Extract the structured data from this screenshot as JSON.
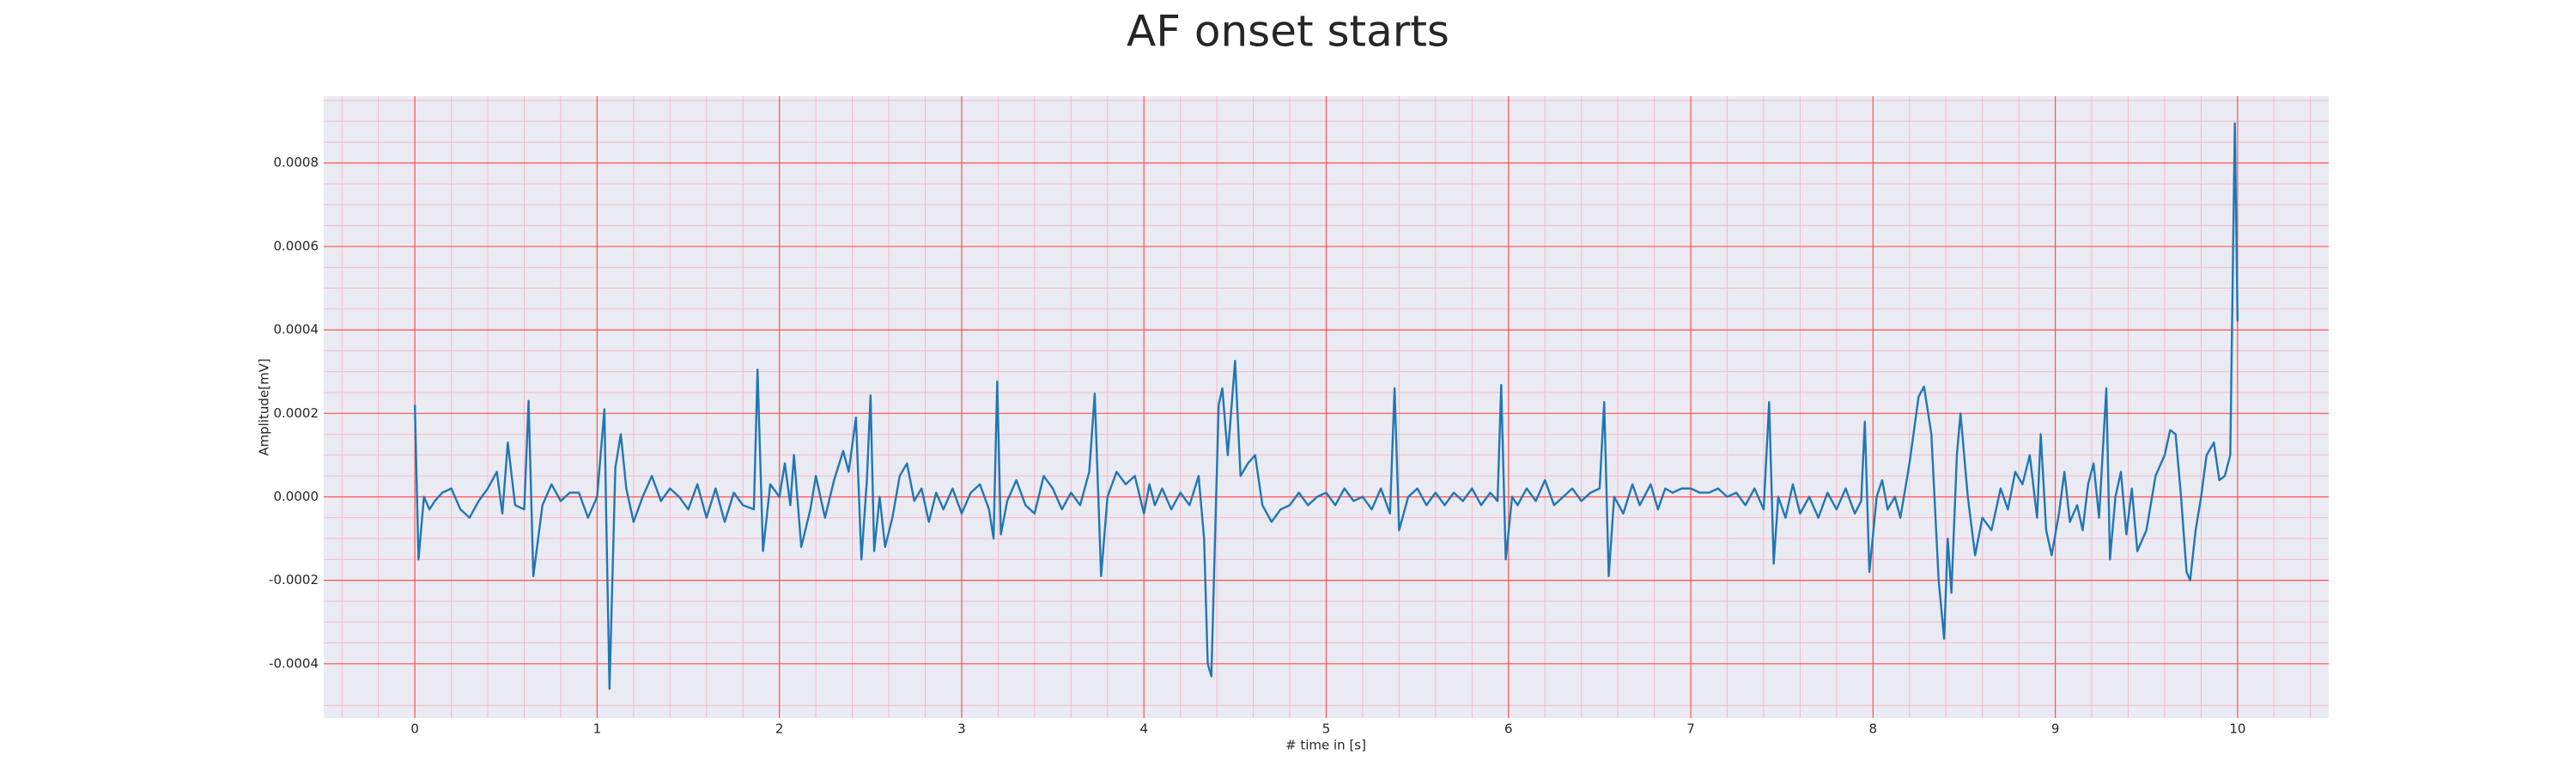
{
  "chart_data": {
    "type": "line",
    "title": "AF onset starts",
    "xlabel": "# time in [s]",
    "ylabel": "Amplitude[mV]",
    "color": "#1f77b4",
    "xlim": [
      -0.5,
      10.5
    ],
    "ylim": [
      -0.00053,
      0.00096
    ],
    "xticks": [
      0,
      1,
      2,
      3,
      4,
      5,
      6,
      7,
      8,
      9,
      10
    ],
    "yticks": [
      -0.0004,
      -0.0002,
      {
        "value": 0,
        "label": "0.0000"
      },
      0.0002,
      0.0004,
      0.0006,
      0.0008
    ],
    "xminorticks": [
      -0.4,
      -0.2,
      0.2,
      0.4,
      0.6,
      0.8,
      1.2,
      1.4,
      1.6,
      1.8,
      2.2,
      2.4,
      2.6,
      2.8,
      3.2,
      3.4,
      3.6,
      3.8,
      4.2,
      4.4,
      4.6,
      4.8,
      5.2,
      5.4,
      5.6,
      5.8,
      6.2,
      6.4,
      6.6,
      6.8,
      7.2,
      7.4,
      7.6,
      7.8,
      8.2,
      8.4,
      8.6,
      8.8,
      9.2,
      9.4,
      9.6,
      9.8,
      10.2,
      10.4
    ],
    "yminorticks": [
      -0.0005,
      -0.00035,
      -0.0003,
      -0.00025,
      -0.00015,
      -0.0001,
      -5e-05,
      5e-05,
      0.0001,
      0.00015,
      0.00025,
      0.0003,
      0.00035,
      0.00045,
      0.0005,
      0.00055,
      0.00065,
      0.0007,
      0.00075,
      0.00085,
      0.0009,
      0.00095
    ],
    "grid": true,
    "major_grid_color": "#ff5050",
    "minor_grid_color": "#f5b8c8",
    "background": "#eaeaf2",
    "x": [
      0,
      0.02,
      0.05,
      0.08,
      0.11,
      0.15,
      0.2,
      0.25,
      0.3,
      0.35,
      0.4,
      0.45,
      0.48,
      0.51,
      0.55,
      0.6,
      0.624,
      0.65,
      0.7,
      0.75,
      0.8,
      0.85,
      0.9,
      0.95,
      1.0,
      1.04,
      1.05,
      1.068,
      1.1,
      1.13,
      1.16,
      1.2,
      1.25,
      1.3,
      1.35,
      1.4,
      1.45,
      1.5,
      1.55,
      1.6,
      1.65,
      1.7,
      1.75,
      1.8,
      1.86,
      1.88,
      1.91,
      1.95,
      2.0,
      2.03,
      2.06,
      2.08,
      2.12,
      2.17,
      2.2,
      2.25,
      2.3,
      2.35,
      2.38,
      2.42,
      2.45,
      2.48,
      2.5,
      2.52,
      2.55,
      2.58,
      2.62,
      2.66,
      2.7,
      2.74,
      2.78,
      2.82,
      2.86,
      2.9,
      2.95,
      3.0,
      3.05,
      3.1,
      3.15,
      3.175,
      3.195,
      3.215,
      3.25,
      3.3,
      3.35,
      3.4,
      3.45,
      3.5,
      3.55,
      3.6,
      3.65,
      3.7,
      3.73,
      3.765,
      3.8,
      3.85,
      3.9,
      3.95,
      4.0,
      4.03,
      4.06,
      4.1,
      4.15,
      4.2,
      4.25,
      4.3,
      4.33,
      4.35,
      4.37,
      4.39,
      4.41,
      4.43,
      4.46,
      4.5,
      4.53,
      4.57,
      4.61,
      4.65,
      4.7,
      4.75,
      4.8,
      4.85,
      4.9,
      4.95,
      5.0,
      5.05,
      5.1,
      5.15,
      5.2,
      5.25,
      5.3,
      5.35,
      5.375,
      5.4,
      5.45,
      5.5,
      5.55,
      5.6,
      5.65,
      5.7,
      5.75,
      5.8,
      5.85,
      5.9,
      5.94,
      5.96,
      5.985,
      6.02,
      6.05,
      6.1,
      6.15,
      6.2,
      6.25,
      6.3,
      6.35,
      6.4,
      6.45,
      6.5,
      6.525,
      6.55,
      6.58,
      6.63,
      6.68,
      6.72,
      6.78,
      6.82,
      6.86,
      6.9,
      6.95,
      7.0,
      7.05,
      7.1,
      7.15,
      7.2,
      7.25,
      7.3,
      7.35,
      7.4,
      7.43,
      7.455,
      7.48,
      7.52,
      7.56,
      7.6,
      7.65,
      7.7,
      7.75,
      7.8,
      7.85,
      7.9,
      7.935,
      7.955,
      7.98,
      8.02,
      8.05,
      8.08,
      8.12,
      8.15,
      8.2,
      8.25,
      8.28,
      8.32,
      8.36,
      8.39,
      8.41,
      8.43,
      8.46,
      8.48,
      8.52,
      8.56,
      8.6,
      8.65,
      8.7,
      8.74,
      8.78,
      8.82,
      8.86,
      8.9,
      8.92,
      8.95,
      8.98,
      9.02,
      9.05,
      9.08,
      9.12,
      9.15,
      9.18,
      9.21,
      9.24,
      9.28,
      9.3,
      9.33,
      9.36,
      9.39,
      9.42,
      9.45,
      9.5,
      9.55,
      9.6,
      9.63,
      9.66,
      9.69,
      9.72,
      9.74,
      9.77,
      9.8,
      9.83,
      9.87,
      9.9,
      9.93,
      9.96,
      9.985,
      10.0
    ],
    "values": [
      0.00022,
      -0.00015,
      0,
      -3e-05,
      -1e-05,
      1e-05,
      2e-05,
      -3e-05,
      -5e-05,
      -1e-05,
      2e-05,
      6e-05,
      -4e-05,
      0.00013,
      -2e-05,
      -3e-05,
      0.00023,
      -0.00019,
      -2e-05,
      3e-05,
      -1e-05,
      1e-05,
      1e-05,
      -5e-05,
      0,
      0.00021,
      -5e-05,
      -0.00046,
      7e-05,
      0.00015,
      2e-05,
      -6e-05,
      0,
      5e-05,
      -1e-05,
      2e-05,
      0,
      -3e-05,
      3e-05,
      -5e-05,
      2e-05,
      -6e-05,
      1e-05,
      -2e-05,
      -3e-05,
      0.000305,
      -0.00013,
      3e-05,
      0,
      8e-05,
      -2e-05,
      0.0001,
      -0.00012,
      -3e-05,
      5e-05,
      -5e-05,
      4e-05,
      0.00011,
      6e-05,
      0.00019,
      -0.00015,
      4e-05,
      0.000243,
      -0.00013,
      0,
      -0.00012,
      -5e-05,
      5e-05,
      8e-05,
      -1e-05,
      2e-05,
      -6e-05,
      1e-05,
      -3e-05,
      2e-05,
      -4e-05,
      1e-05,
      3e-05,
      -3e-05,
      -0.0001,
      0.000276,
      -9e-05,
      -1e-05,
      4e-05,
      -2e-05,
      -4e-05,
      5e-05,
      2e-05,
      -3e-05,
      1e-05,
      -2e-05,
      6e-05,
      0.000247,
      -0.00019,
      0,
      6e-05,
      3e-05,
      5e-05,
      -4e-05,
      3e-05,
      -2e-05,
      2e-05,
      -3e-05,
      1e-05,
      -2e-05,
      5e-05,
      -0.0001,
      -0.0004,
      -0.00043,
      -0.0001,
      0.00022,
      0.00026,
      0.0001,
      0.000326,
      5e-05,
      8e-05,
      0.0001,
      -2e-05,
      -6e-05,
      -3e-05,
      -2e-05,
      1e-05,
      -2e-05,
      0,
      1e-05,
      -2e-05,
      2e-05,
      -1e-05,
      0,
      -3e-05,
      2e-05,
      -4e-05,
      0.00026,
      -8e-05,
      0,
      2e-05,
      -2e-05,
      1e-05,
      -2e-05,
      1e-05,
      -1e-05,
      2e-05,
      -2e-05,
      1e-05,
      -1e-05,
      0.000268,
      -0.00015,
      0,
      -2e-05,
      2e-05,
      -1e-05,
      4e-05,
      -2e-05,
      0,
      2e-05,
      -1e-05,
      1e-05,
      2e-05,
      0.000227,
      -0.00019,
      0,
      -4e-05,
      3e-05,
      -2e-05,
      3e-05,
      -3e-05,
      2e-05,
      1e-05,
      2e-05,
      2e-05,
      1e-05,
      1e-05,
      2e-05,
      0,
      1e-05,
      -2e-05,
      2e-05,
      -3e-05,
      0.000227,
      -0.00016,
      0,
      -5e-05,
      3e-05,
      -4e-05,
      0,
      -5e-05,
      1e-05,
      -3e-05,
      2e-05,
      -4e-05,
      -1e-05,
      0.00018,
      -0.00018,
      0,
      4e-05,
      -3e-05,
      0,
      -5e-05,
      8e-05,
      0.00024,
      0.000264,
      0.00015,
      -0.0002,
      -0.00034,
      -0.0001,
      -0.00023,
      0.0001,
      0.0002,
      0,
      -0.00014,
      -5e-05,
      -8e-05,
      2e-05,
      -3e-05,
      6e-05,
      3e-05,
      0.0001,
      -5e-05,
      0.00015,
      -8e-05,
      -0.00014,
      -4e-05,
      6e-05,
      -6e-05,
      -2e-05,
      -8e-05,
      3e-05,
      8e-05,
      -5e-05,
      0.00026,
      -0.00015,
      0,
      6e-05,
      -9e-05,
      2e-05,
      -0.00013,
      -8e-05,
      5e-05,
      0.0001,
      0.00016,
      0.00015,
      0,
      -0.00018,
      -0.0002,
      -8e-05,
      0,
      0.0001,
      0.00013,
      4e-05,
      5e-05,
      0.0001,
      0.000895,
      0.00042
    ]
  }
}
